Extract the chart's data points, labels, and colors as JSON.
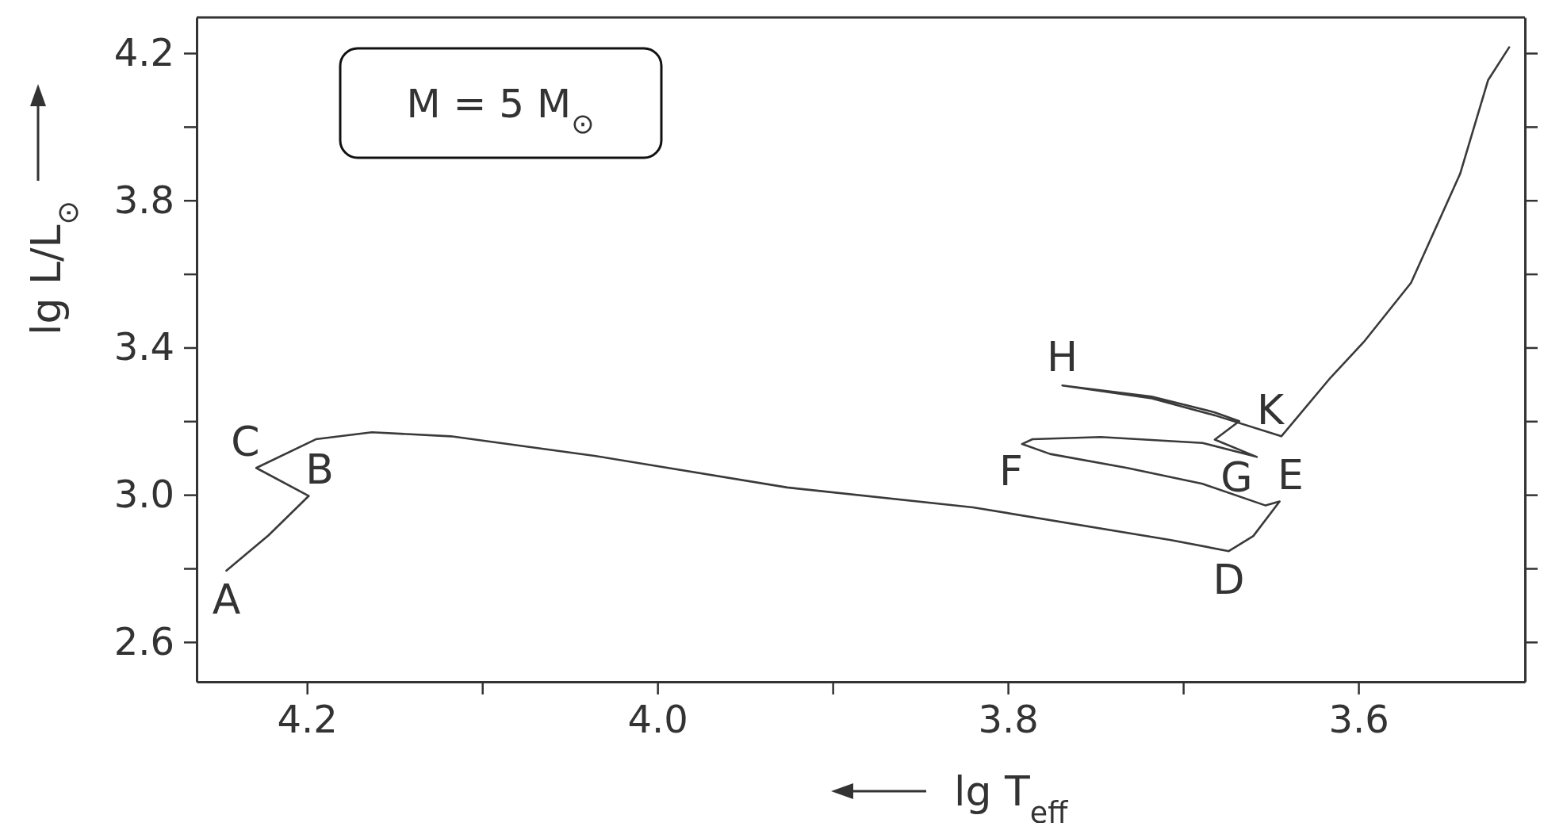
{
  "chart_data": {
    "type": "line",
    "xlabel": "lg T$_{eff}$",
    "ylabel": "lg L/L$_{⊙}$",
    "xlim": [
      4.263,
      3.505
    ],
    "ylim": [
      2.492,
      4.297
    ],
    "xticks": [
      4.2,
      {
        "value": 4.1,
        "label": null
      },
      {
        "value": 4.0,
        "label": "4.0"
      },
      {
        "value": 3.9,
        "label": null
      },
      3.8,
      {
        "value": 3.7,
        "label": null
      },
      3.6
    ],
    "yticks": [
      2.6,
      {
        "value": 2.8,
        "label": null
      },
      {
        "value": 3.0,
        "label": "3.0"
      },
      {
        "value": 3.2,
        "label": null
      },
      3.4,
      {
        "value": 3.6,
        "label": null
      },
      3.8,
      {
        "value": 4.0,
        "label": null
      },
      4.2
    ],
    "marker": "none",
    "line_style": "solid",
    "series": [
      {
        "color": "#3a3a3a",
        "x": [
          4.246,
          4.222,
          4.199,
          4.229,
          4.195,
          4.163,
          4.118,
          4.036,
          3.926,
          3.82,
          3.707,
          3.674,
          3.66,
          3.645,
          3.653,
          3.689,
          3.732,
          3.776,
          3.792,
          3.786,
          3.747,
          3.689,
          3.658,
          3.682,
          3.668,
          3.682,
          3.718,
          3.769,
          3.718,
          3.682,
          3.644,
          3.616,
          3.597,
          3.57,
          3.542,
          3.526,
          3.514
        ],
        "values": [
          2.794,
          2.89,
          2.997,
          3.073,
          3.151,
          3.17,
          3.159,
          3.106,
          3.02,
          2.966,
          2.877,
          2.847,
          2.888,
          2.982,
          2.971,
          3.03,
          3.073,
          3.111,
          3.138,
          3.151,
          3.157,
          3.141,
          3.103,
          3.15,
          3.2,
          3.224,
          3.267,
          3.297,
          3.262,
          3.216,
          3.159,
          3.318,
          3.415,
          3.576,
          3.872,
          4.127,
          4.216
        ]
      }
    ],
    "annotations": [
      "M = 5 M$_{⊙}$",
      {
        "text": "A",
        "x": 4.246,
        "y": 2.794
      },
      {
        "text": "B",
        "x": 4.199,
        "y": 2.997
      },
      {
        "text": "C",
        "x": 4.229,
        "y": 3.073
      },
      {
        "text": "D",
        "x": 3.674,
        "y": 2.847
      },
      {
        "text": "E",
        "x": 3.645,
        "y": 2.982
      },
      {
        "text": "F",
        "x": 3.792,
        "y": 3.138
      },
      {
        "text": "G",
        "x": 3.658,
        "y": 3.103
      },
      {
        "text": "H",
        "x": 3.769,
        "y": 3.297
      },
      {
        "text": "K",
        "x": 3.644,
        "y": 3.159
      }
    ]
  }
}
